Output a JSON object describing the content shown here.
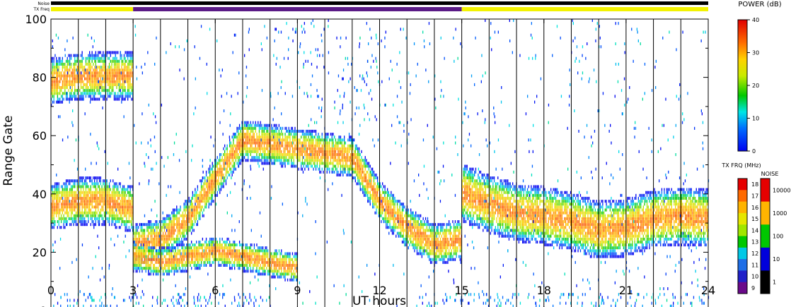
{
  "chart_data": {
    "type": "heatmap",
    "top_bars": {
      "noise_label": "Noise",
      "txfreq_label": "TX Freq",
      "txfreq_segments": [
        {
          "from": 0,
          "to": 3,
          "color": "#f2f200"
        },
        {
          "from": 3,
          "to": 15,
          "color": "#5a1a86"
        },
        {
          "from": 15,
          "to": 24,
          "color": "#f2f200"
        }
      ]
    },
    "xlabel": "UT hours",
    "ylabel": "Range Gate",
    "xlim": [
      0,
      24
    ],
    "ylim": [
      0,
      100
    ],
    "xticks": [
      0,
      3,
      6,
      9,
      12,
      15,
      18,
      21,
      24
    ],
    "yticks": [
      0,
      20,
      40,
      60,
      80,
      100
    ],
    "scans_per_hour_lines": true,
    "echo_bands": [
      {
        "name": "",
        "x": [
          0,
          1,
          2,
          3
        ],
        "y": [
          35,
          37,
          37,
          34
        ],
        "width": 8
      },
      {
        "name": "",
        "x": [
          0,
          1,
          2,
          3
        ],
        "y": [
          78,
          80,
          80,
          80
        ],
        "width": 8
      },
      {
        "name": "",
        "x": [
          3,
          4,
          5,
          6,
          7,
          9,
          11,
          12,
          13,
          14,
          15
        ],
        "y": [
          22,
          24,
          31,
          45,
          58,
          55,
          52,
          37,
          28,
          22,
          24
        ],
        "width": 7
      },
      {
        "name": "",
        "x": [
          3,
          4,
          5,
          6,
          7,
          8,
          9
        ],
        "y": [
          18,
          16,
          18,
          20,
          18,
          16,
          14
        ],
        "width": 5
      },
      {
        "name": "",
        "x": [
          15,
          16,
          17,
          18,
          19,
          20,
          21,
          22,
          23,
          24
        ],
        "y": [
          40,
          36,
          33,
          32,
          30,
          27,
          28,
          31,
          32,
          31
        ],
        "width": 10
      }
    ],
    "legends": {
      "power": {
        "title": "POWER (dB)",
        "ticks": [
          0,
          10,
          20,
          30,
          40
        ]
      },
      "txfreq": {
        "title": "TX FRQ (MHz)",
        "ticks": [
          9,
          10,
          11,
          12,
          13,
          14,
          15,
          16,
          17,
          18
        ]
      },
      "noise": {
        "title": "NOISE",
        "ticks": [
          1,
          10,
          100,
          1000,
          10000
        ]
      }
    }
  }
}
